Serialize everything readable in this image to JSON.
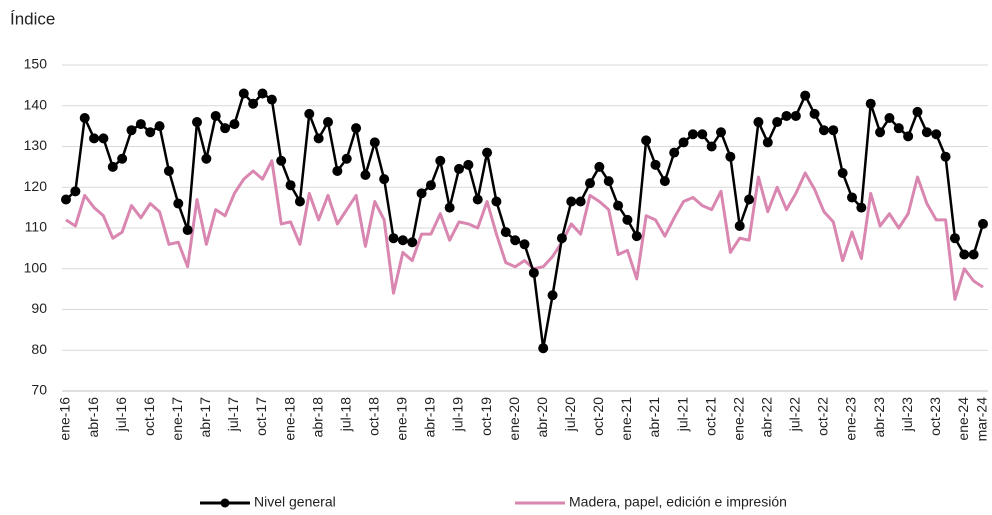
{
  "chart_data": {
    "type": "line",
    "y_label": "Índice",
    "categories": [
      "ene-16",
      null,
      null,
      "abr-16",
      null,
      null,
      "jul-16",
      null,
      null,
      "oct-16",
      null,
      null,
      "ene-17",
      null,
      null,
      "abr-17",
      null,
      null,
      "jul-17",
      null,
      null,
      "oct-17",
      null,
      null,
      "ene-18",
      null,
      null,
      "abr-18",
      null,
      null,
      "jul-18",
      null,
      null,
      "oct-18",
      null,
      null,
      "ene-19",
      null,
      null,
      "abr-19",
      null,
      null,
      "jul-19",
      null,
      null,
      "oct-19",
      null,
      null,
      "ene-20",
      null,
      null,
      "abr-20",
      null,
      null,
      "jul-20",
      null,
      null,
      "oct-20",
      null,
      null,
      "ene-21",
      null,
      null,
      "abr-21",
      null,
      null,
      "jul-21",
      null,
      null,
      "oct-21",
      null,
      null,
      "ene-22",
      null,
      null,
      "abr-22",
      null,
      null,
      "jul-22",
      null,
      null,
      "oct-22",
      null,
      null,
      "ene-23",
      null,
      null,
      "abr-23",
      null,
      null,
      "jul-23",
      null,
      null,
      "oct-23",
      null,
      null,
      "ene-24",
      null,
      "mar-24"
    ],
    "series": [
      {
        "name": "Nivel general",
        "color": "#000000",
        "marker": true,
        "values": [
          117,
          119,
          137,
          132,
          132,
          125,
          127,
          134,
          135.5,
          133.5,
          135,
          124,
          116,
          109.5,
          136,
          127,
          137.5,
          134.5,
          135.5,
          143,
          140.5,
          143,
          141.5,
          126.5,
          120.5,
          116.5,
          138,
          132,
          136,
          124,
          127,
          134.5,
          123,
          131,
          122,
          107.5,
          107,
          106.5,
          118.5,
          120.5,
          126.5,
          115,
          124.5,
          125.5,
          117,
          128.5,
          116.5,
          109,
          107,
          106,
          99,
          80.5,
          93.5,
          107.5,
          116.5,
          116.5,
          121,
          125,
          121.5,
          115.5,
          112,
          108,
          131.5,
          125.5,
          121.5,
          128.5,
          131,
          133,
          133,
          130,
          133.5,
          127.5,
          110.5,
          117,
          136,
          131,
          136,
          137.5,
          137.5,
          142.5,
          138,
          134,
          134,
          123.5,
          117.5,
          115,
          140.5,
          133.5,
          137,
          134.5,
          132.5,
          138.5,
          133.5,
          133,
          127.5,
          107.5,
          103.5,
          103.5,
          111
        ]
      },
      {
        "name": "Madera, papel, edición e impresión",
        "color": "#d986b0",
        "marker": false,
        "values": [
          112,
          110.5,
          118,
          115,
          113,
          107.5,
          109,
          115.5,
          112.5,
          116,
          114,
          106,
          106.5,
          100.5,
          117,
          106,
          114.5,
          113,
          118.5,
          122,
          124,
          122,
          126.5,
          111,
          111.5,
          106,
          118.5,
          112,
          118,
          111,
          114.5,
          118,
          105.5,
          116.5,
          112,
          94,
          104,
          102,
          108.5,
          108.5,
          113.5,
          107,
          111.5,
          111,
          110,
          116.5,
          108.5,
          101.5,
          100.5,
          102,
          100,
          100.5,
          103,
          106.5,
          111,
          108.5,
          118,
          116.5,
          114.5,
          103.5,
          104.5,
          97.5,
          113,
          112,
          108,
          112.5,
          116.5,
          117.5,
          115.5,
          114.5,
          119,
          104,
          107.5,
          107,
          122.5,
          114,
          120,
          114.5,
          118.5,
          123.5,
          119.5,
          114,
          111.5,
          102,
          109,
          102.5,
          118.5,
          110.5,
          113.5,
          110,
          113.5,
          122.5,
          116,
          112,
          112,
          92.5,
          100,
          97,
          95.5
        ]
      }
    ],
    "ylim": [
      70,
      150
    ],
    "yticks": [
      70,
      80,
      90,
      100,
      110,
      120,
      130,
      140,
      150
    ],
    "grid": true,
    "legend": "bottom"
  }
}
